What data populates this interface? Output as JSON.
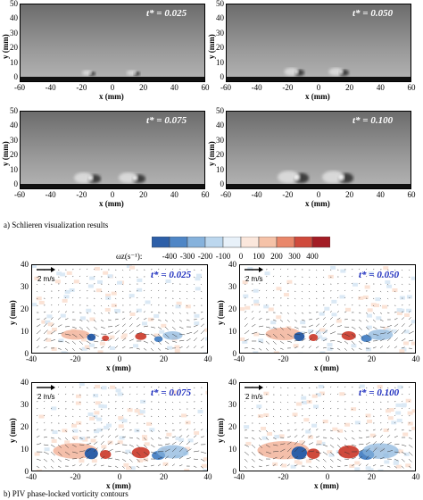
{
  "schlieren": {
    "panels": [
      {
        "t_label": "t* = 0.025"
      },
      {
        "t_label": "t* = 0.050"
      },
      {
        "t_label": "t* = 0.075"
      },
      {
        "t_label": "t* = 0.100"
      }
    ],
    "y_ticks": [
      "50",
      "40",
      "30",
      "20",
      "10",
      "0"
    ],
    "x_ticks": [
      "-60",
      "-40",
      "-20",
      "0",
      "20",
      "40",
      "60"
    ],
    "ylabel": "y (mm)",
    "xlabel": "x (mm)",
    "caption": "a) Schlieren visualization results"
  },
  "colorbar": {
    "label": "ωz(s⁻¹):",
    "ticks": [
      "-400",
      "-300",
      "-200",
      "-100",
      "0",
      "100",
      "200",
      "300",
      "400"
    ],
    "colors": [
      "#2d5fa8",
      "#4f86c6",
      "#86b2dc",
      "#bcd7ee",
      "#e8f1f9",
      "#fbe7dc",
      "#f5c2a8",
      "#e9876a",
      "#cf4a3c",
      "#a31d25"
    ]
  },
  "piv": {
    "panels": [
      {
        "t_label": "t* = 0.025"
      },
      {
        "t_label": "t* = 0.050"
      },
      {
        "t_label": "t* = 0.075"
      },
      {
        "t_label": "t* = 0.100"
      }
    ],
    "scale_label": "2 m/s",
    "y_ticks": [
      "40",
      "30",
      "20",
      "10",
      "0"
    ],
    "x_ticks": [
      "-40",
      "-20",
      "0",
      "20",
      "40"
    ],
    "ylabel": "y (mm)",
    "xlabel": "x (mm)",
    "caption": "b) PIV phase-locked vorticity contours"
  }
}
